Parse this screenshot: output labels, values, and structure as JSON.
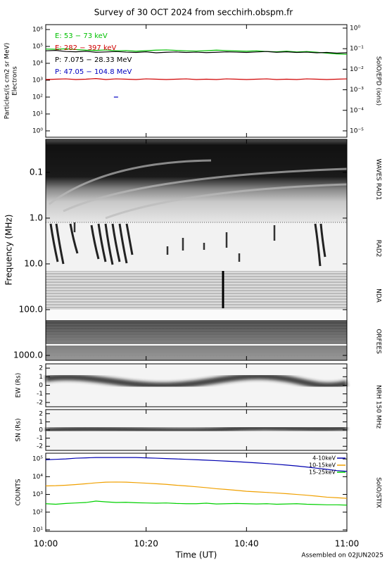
{
  "title": "Survey of 30 OCT 2024 from secchirh.obspm.fr",
  "xlabel": "Time (UT)",
  "footnote": "Assembled on 02JUN2025",
  "chart_data": [
    {
      "type": "line",
      "ylog": true,
      "ylabel": [
        "Particles/(s cm2 sr MeV)",
        "Electrons"
      ],
      "right_label": "SolO/EPD (ions)",
      "ylim": [
        0.42,
        1950000
      ],
      "yticks": [
        {
          "value": 1,
          "label": "10⁰"
        },
        {
          "value": 10,
          "label": "10¹"
        },
        {
          "value": 100,
          "label": "10²"
        },
        {
          "value": 1000,
          "label": "10³"
        },
        {
          "value": 10000,
          "label": "10⁴"
        },
        {
          "value": 100000,
          "label": "10⁵"
        },
        {
          "value": 1000000,
          "label": "10⁶"
        }
      ],
      "y2lim": [
        4.9e-06,
        1.48
      ],
      "y2ticks": [
        {
          "value": 1e-05,
          "label": "10⁻⁵"
        },
        {
          "value": 0.0001,
          "label": "10⁻⁴"
        },
        {
          "value": 0.001,
          "label": "10⁻³"
        },
        {
          "value": 0.01,
          "label": "10⁻²"
        },
        {
          "value": 0.1,
          "label": "10⁻¹"
        },
        {
          "value": 1,
          "label": "10⁰"
        }
      ],
      "legend": "upper left",
      "x": [
        "10:00",
        "10:02",
        "10:04",
        "10:06",
        "10:08",
        "10:10",
        "10:12",
        "10:14",
        "10:16",
        "10:18",
        "10:20",
        "10:22",
        "10:24",
        "10:26",
        "10:28",
        "10:30",
        "10:32",
        "10:34",
        "10:36",
        "10:38",
        "10:40",
        "10:42",
        "10:44",
        "10:46",
        "10:48",
        "10:50",
        "10:52",
        "10:54",
        "10:56",
        "10:58",
        "11:00"
      ],
      "series": [
        {
          "name": "E: 53 − 73 keV",
          "color": "#00c000",
          "values": [
            70000,
            68000,
            72000,
            65000,
            60000,
            58000,
            62000,
            55000,
            57000,
            52000,
            56000,
            60000,
            62000,
            58000,
            55000,
            53000,
            56000,
            60000,
            57000,
            54000,
            52000,
            55000,
            50000,
            48000,
            52000,
            47000,
            50000,
            45000,
            40000,
            36000,
            34000
          ]
        },
        {
          "name": "E: 282 − 397 keV",
          "color": "#d00000",
          "values": [
            1100,
            1150,
            1200,
            1100,
            1150,
            1250,
            1100,
            1200,
            1150,
            1100,
            1200,
            1150,
            1100,
            1150,
            1200,
            1100,
            1150,
            1100,
            1200,
            1150,
            1100,
            1150,
            1200,
            1100,
            1150,
            1100,
            1200,
            1150,
            1100,
            1150,
            1200
          ]
        },
        {
          "name": "P: 7.075 − 28.33 MeV",
          "color": "#000000",
          "values": [
            55000,
            58000,
            50000,
            48000,
            52000,
            45000,
            47000,
            50000,
            46000,
            44000,
            48000,
            42000,
            45000,
            47000,
            44000,
            46000,
            43000,
            45000,
            48000,
            46000,
            44000,
            47000,
            50000,
            45000,
            48000,
            44000,
            46000,
            42000,
            44000,
            40000,
            42000
          ]
        },
        {
          "name": "P: 47.05 − 104.8 MeV",
          "color": "#0000c0",
          "values": [
            null,
            null,
            null,
            null,
            null,
            null,
            null,
            100,
            null,
            null,
            null,
            null,
            null,
            null,
            null,
            null,
            null,
            null,
            null,
            null,
            null,
            null,
            null,
            null,
            null,
            null,
            null,
            null,
            null,
            null,
            null
          ]
        }
      ]
    },
    {
      "type": "spectrogram",
      "ylog": true,
      "y_inverted": true,
      "ylabel": "Frequency (MHz)",
      "right_labels": [
        "WAVES RAD1",
        "RAD2",
        "NDA",
        "ORFEES"
      ],
      "ylim": [
        0.019,
        1280
      ],
      "yticks": [
        0.1,
        {
          "value": 1,
          "label": "1.0"
        },
        {
          "value": 10,
          "label": "10.0"
        },
        {
          "value": 100,
          "label": "100.0"
        },
        {
          "value": 1000,
          "label": "1000.0"
        }
      ]
    },
    {
      "type": "heatmap",
      "ylabel": "EW (Rs)",
      "right_label": "NRH 150 MHz",
      "ylim": [
        -2.5,
        2.5
      ],
      "yticks": [
        -2,
        -1,
        0,
        1,
        2
      ]
    },
    {
      "type": "heatmap",
      "ylabel": "SN (Rs)",
      "ylim": [
        -2.5,
        2.5
      ],
      "yticks": [
        -2,
        -1,
        0,
        1,
        2
      ]
    },
    {
      "type": "line",
      "ylog": true,
      "ylabel": "COUNTS",
      "right_label": "SolO/STIX",
      "ylim": [
        8.3,
        210000
      ],
      "yticks": [
        {
          "value": 10,
          "label": "10¹"
        },
        {
          "value": 100,
          "label": "10²"
        },
        {
          "value": 1000,
          "label": "10³"
        },
        {
          "value": 10000,
          "label": "10⁴"
        },
        {
          "value": 100000,
          "label": "10⁵"
        }
      ],
      "xlim": [
        "10:00",
        "11:00"
      ],
      "xticks": [
        "10:00",
        "10:20",
        "10:40",
        "11:00"
      ],
      "legend": "upper right",
      "x": [
        "10:00",
        "10:02",
        "10:04",
        "10:06",
        "10:08",
        "10:10",
        "10:12",
        "10:14",
        "10:16",
        "10:18",
        "10:20",
        "10:22",
        "10:24",
        "10:26",
        "10:28",
        "10:30",
        "10:32",
        "10:34",
        "10:36",
        "10:38",
        "10:40",
        "10:42",
        "10:44",
        "10:46",
        "10:48",
        "10:50",
        "10:52",
        "10:54",
        "10:56",
        "10:58",
        "11:00"
      ],
      "series": [
        {
          "name": "4-10keV",
          "color": "#0000b0",
          "values": [
            90000,
            95000,
            100000,
            110000,
            115000,
            120000,
            120000,
            120000,
            120000,
            120000,
            115000,
            110000,
            105000,
            100000,
            95000,
            90000,
            85000,
            80000,
            75000,
            70000,
            65000,
            60000,
            55000,
            50000,
            45000,
            40000,
            35000,
            30000,
            26000,
            22000,
            20000
          ]
        },
        {
          "name": "10-15keV",
          "color": "#f0a000",
          "values": [
            3000,
            3100,
            3300,
            3600,
            4000,
            4500,
            4900,
            5000,
            4900,
            4600,
            4300,
            4000,
            3700,
            3300,
            3000,
            2700,
            2400,
            2100,
            1900,
            1700,
            1500,
            1400,
            1300,
            1200,
            1100,
            1000,
            900,
            800,
            700,
            650,
            600
          ]
        },
        {
          "name": "15-25keV",
          "color": "#00d000",
          "values": [
            300,
            280,
            310,
            330,
            350,
            420,
            380,
            350,
            360,
            340,
            330,
            320,
            330,
            310,
            300,
            300,
            320,
            290,
            300,
            310,
            300,
            290,
            300,
            280,
            290,
            300,
            280,
            270,
            260,
            260,
            250
          ]
        }
      ]
    }
  ]
}
